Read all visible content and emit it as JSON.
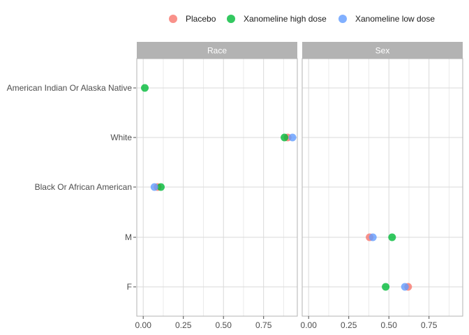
{
  "chart_data": {
    "type": "scatter",
    "legend": {
      "position": "top",
      "entries": [
        {
          "name": "Placebo",
          "color": "#F8766D"
        },
        {
          "name": "Xanomeline high dose",
          "color": "#00BA38"
        },
        {
          "name": "Xanomeline low dose",
          "color": "#619CFF"
        }
      ]
    },
    "y_categories": [
      "American Indian Or Alaska Native",
      "White",
      "Black Or African American",
      "M",
      "F"
    ],
    "x_ticks": [
      "0.00",
      "0.25",
      "0.50",
      "0.75"
    ],
    "xlim": [
      -0.04,
      0.96
    ],
    "grid": true,
    "panels": [
      {
        "label": "Race",
        "points": [
          {
            "series": "Xanomeline high dose",
            "category": "American Indian Or Alaska Native",
            "x": 0.01
          },
          {
            "series": "Placebo",
            "category": "White",
            "x": 0.9
          },
          {
            "series": "Xanomeline low dose",
            "category": "White",
            "x": 0.93
          },
          {
            "series": "Xanomeline high dose",
            "category": "White",
            "x": 0.88
          },
          {
            "series": "Placebo",
            "category": "Black Or African American",
            "x": 0.09
          },
          {
            "series": "Xanomeline high dose",
            "category": "Black Or African American",
            "x": 0.11
          },
          {
            "series": "Xanomeline low dose",
            "category": "Black Or African American",
            "x": 0.07
          }
        ]
      },
      {
        "label": "Sex",
        "points": [
          {
            "series": "Placebo",
            "category": "M",
            "x": 0.38
          },
          {
            "series": "Xanomeline low dose",
            "category": "M",
            "x": 0.4
          },
          {
            "series": "Xanomeline high dose",
            "category": "M",
            "x": 0.52
          },
          {
            "series": "Placebo",
            "category": "F",
            "x": 0.62
          },
          {
            "series": "Xanomeline low dose",
            "category": "F",
            "x": 0.6
          },
          {
            "series": "Xanomeline high dose",
            "category": "F",
            "x": 0.48
          }
        ]
      }
    ]
  }
}
